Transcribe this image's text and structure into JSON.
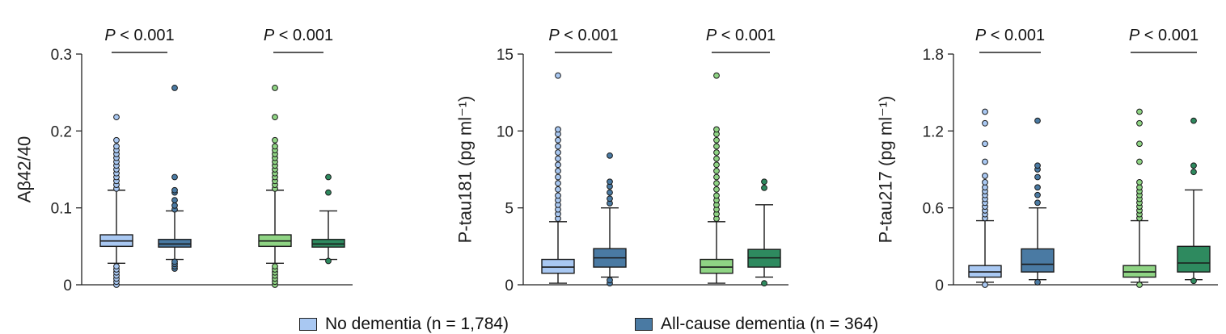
{
  "colors": {
    "no_dementia": "#a9c8f2",
    "all_cause_dementia": "#4a7aa3",
    "no_dementia_green": "#8fd484",
    "all_cause_dementia_green": "#2e8a5f",
    "outline": "#1a1a1a"
  },
  "legend": [
    {
      "label": "No dementia (n = 1,784)",
      "color": "#a9c8f2"
    },
    {
      "label": "All-cause dementia (n = 364)",
      "color": "#4a7aa3"
    }
  ],
  "chart_data": [
    {
      "type": "box",
      "ylabel": "Aβ42/40",
      "ylim": [
        0,
        0.3
      ],
      "yticks": [
        "0",
        "0.1",
        "0.2",
        "0.3"
      ],
      "ytick_values": [
        0,
        0.1,
        0.2,
        0.3
      ],
      "groups": [
        {
          "pvalue": "P < 0.001",
          "boxes": [
            {
              "series": "No dementia",
              "color": "#a9c8f2",
              "whisker_low": 0.028,
              "q1": 0.05,
              "median": 0.057,
              "q3": 0.065,
              "whisker_high": 0.123,
              "outliers": [
                0.0,
                0.004,
                0.008,
                0.012,
                0.016,
                0.02,
                0.024,
                0.125,
                0.13,
                0.135,
                0.14,
                0.145,
                0.15,
                0.155,
                0.16,
                0.165,
                0.17,
                0.175,
                0.18,
                0.188,
                0.218
              ]
            },
            {
              "series": "All-cause dementia",
              "color": "#4a7aa3",
              "whisker_low": 0.033,
              "q1": 0.049,
              "median": 0.053,
              "q3": 0.059,
              "whisker_high": 0.096,
              "outliers": [
                0.021,
                0.024,
                0.027,
                0.03,
                0.098,
                0.103,
                0.11,
                0.12,
                0.123,
                0.14,
                0.256
              ]
            }
          ]
        },
        {
          "pvalue": "P < 0.001",
          "boxes": [
            {
              "series": "No dementia",
              "color": "#8fd484",
              "whisker_low": 0.028,
              "q1": 0.05,
              "median": 0.057,
              "q3": 0.065,
              "whisker_high": 0.123,
              "outliers": [
                0.0,
                0.004,
                0.008,
                0.012,
                0.016,
                0.02,
                0.024,
                0.125,
                0.13,
                0.135,
                0.14,
                0.145,
                0.15,
                0.155,
                0.16,
                0.165,
                0.17,
                0.175,
                0.18,
                0.188,
                0.218,
                0.256
              ]
            },
            {
              "series": "All-cause dementia",
              "color": "#2e8a5f",
              "whisker_low": 0.033,
              "q1": 0.049,
              "median": 0.053,
              "q3": 0.059,
              "whisker_high": 0.096,
              "outliers": [
                0.031,
                0.12,
                0.14
              ]
            }
          ]
        }
      ]
    },
    {
      "type": "box",
      "ylabel": "P-tau181 (pg ml⁻¹)",
      "ylim": [
        0,
        15
      ],
      "yticks": [
        "0",
        "5",
        "10",
        "15"
      ],
      "ytick_values": [
        0,
        5,
        10,
        15
      ],
      "groups": [
        {
          "pvalue": "P < 0.001",
          "boxes": [
            {
              "series": "No dementia",
              "color": "#a9c8f2",
              "whisker_low": 0.1,
              "q1": 0.75,
              "median": 1.15,
              "q3": 1.65,
              "whisker_high": 4.1,
              "outliers": [
                4.3,
                4.6,
                4.9,
                5.2,
                5.5,
                5.8,
                6.2,
                6.6,
                7.0,
                7.4,
                7.8,
                8.2,
                8.6,
                9.0,
                9.4,
                9.8,
                10.1,
                13.6
              ]
            },
            {
              "series": "All-cause dementia",
              "color": "#4a7aa3",
              "whisker_low": 0.5,
              "q1": 1.15,
              "median": 1.75,
              "q3": 2.35,
              "whisker_high": 5.0,
              "outliers": [
                0.1,
                0.3,
                5.3,
                5.6,
                6.0,
                6.4,
                6.7,
                8.4
              ]
            }
          ]
        },
        {
          "pvalue": "P < 0.001",
          "boxes": [
            {
              "series": "No dementia",
              "color": "#8fd484",
              "whisker_low": 0.1,
              "q1": 0.75,
              "median": 1.15,
              "q3": 1.65,
              "whisker_high": 4.1,
              "outliers": [
                4.3,
                4.6,
                4.9,
                5.2,
                5.5,
                5.8,
                6.2,
                6.6,
                7.0,
                7.4,
                7.8,
                8.2,
                8.6,
                9.0,
                9.4,
                9.8,
                10.1,
                13.6
              ]
            },
            {
              "series": "All-cause dementia",
              "color": "#2e8a5f",
              "whisker_low": 0.5,
              "q1": 1.15,
              "median": 1.75,
              "q3": 2.3,
              "whisker_high": 5.2,
              "outliers": [
                0.1,
                6.3,
                6.7
              ]
            }
          ]
        }
      ]
    },
    {
      "type": "box",
      "ylabel": "P-tau217 (pg ml⁻¹)",
      "ylim": [
        0,
        1.8
      ],
      "yticks": [
        "0",
        "0.6",
        "1.2",
        "1.8"
      ],
      "ytick_values": [
        0,
        0.6,
        1.2,
        1.8
      ],
      "groups": [
        {
          "pvalue": "P < 0.001",
          "boxes": [
            {
              "series": "No dementia",
              "color": "#a9c8f2",
              "whisker_low": 0.02,
              "q1": 0.06,
              "median": 0.1,
              "q3": 0.15,
              "whisker_high": 0.5,
              "outliers": [
                0.0,
                0.52,
                0.55,
                0.58,
                0.61,
                0.64,
                0.67,
                0.7,
                0.73,
                0.76,
                0.8,
                0.85,
                0.96,
                1.1,
                1.26,
                1.35
              ]
            },
            {
              "series": "All-cause dementia",
              "color": "#4a7aa3",
              "whisker_low": 0.04,
              "q1": 0.1,
              "median": 0.16,
              "q3": 0.28,
              "whisker_high": 0.6,
              "outliers": [
                0.02,
                0.64,
                0.7,
                0.76,
                0.84,
                0.9,
                0.93,
                1.28
              ]
            }
          ]
        },
        {
          "pvalue": "P < 0.001",
          "boxes": [
            {
              "series": "No dementia",
              "color": "#8fd484",
              "whisker_low": 0.02,
              "q1": 0.06,
              "median": 0.1,
              "q3": 0.15,
              "whisker_high": 0.5,
              "outliers": [
                0.0,
                0.52,
                0.55,
                0.58,
                0.61,
                0.64,
                0.67,
                0.7,
                0.73,
                0.76,
                0.8,
                0.96,
                1.1,
                1.26,
                1.35
              ]
            },
            {
              "series": "All-cause dementia",
              "color": "#2e8a5f",
              "whisker_low": 0.04,
              "q1": 0.1,
              "median": 0.17,
              "q3": 0.3,
              "whisker_high": 0.74,
              "outliers": [
                0.03,
                0.88,
                0.93,
                1.28
              ]
            }
          ]
        }
      ]
    }
  ]
}
